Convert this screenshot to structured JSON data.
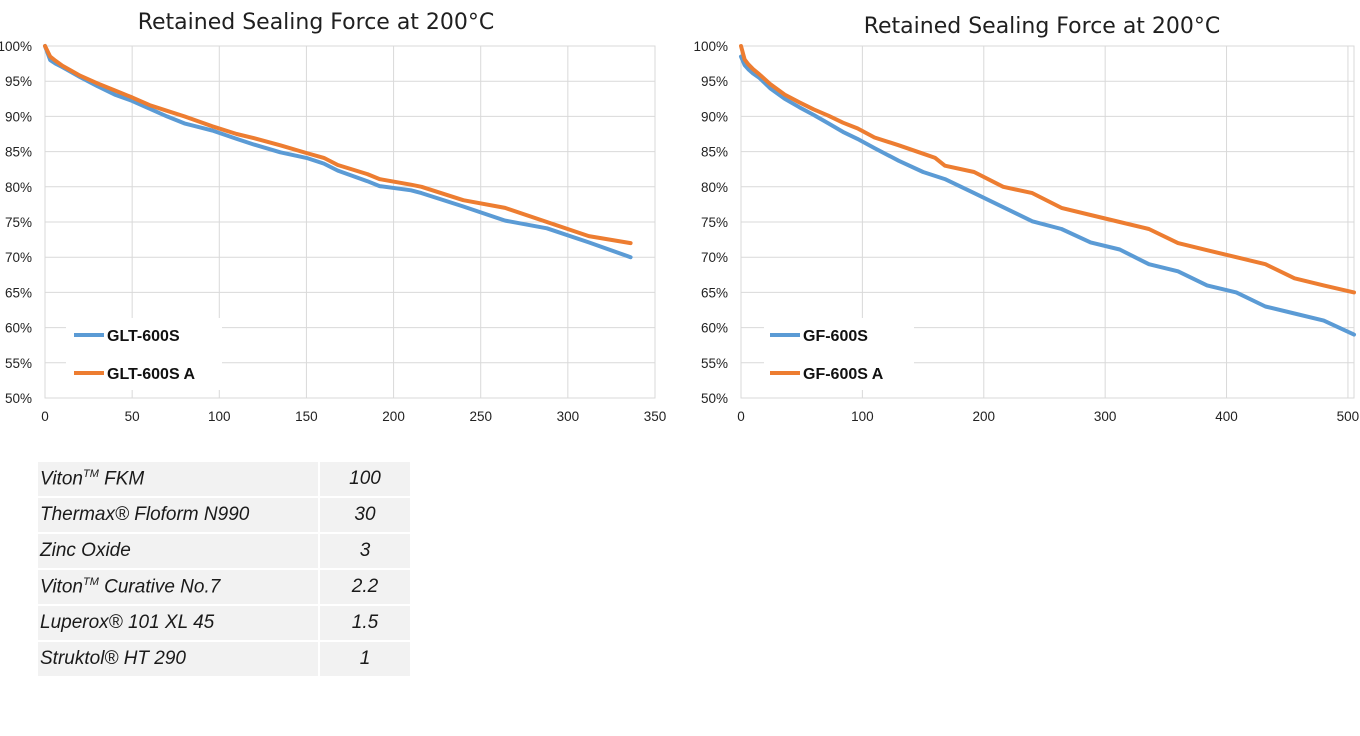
{
  "chart_data": [
    {
      "type": "line",
      "title": "Retained Sealing Force at 200°C",
      "xlim": [
        0,
        350
      ],
      "ylim": [
        50,
        100
      ],
      "x_ticks": [
        "0",
        "50",
        "100",
        "150",
        "200",
        "250",
        "300",
        "350"
      ],
      "y_ticks": [
        "50%",
        "55%",
        "60%",
        "65%",
        "70%",
        "75%",
        "80%",
        "85%",
        "90%",
        "95%",
        "100%"
      ],
      "grid": true,
      "legend_position": "bottom-left",
      "series": [
        {
          "name": "GLT-600S",
          "color": "#5b9bd5",
          "x": [
            0,
            3,
            6,
            10,
            15,
            20,
            30,
            40,
            50,
            60,
            70,
            80,
            96,
            110,
            120,
            135,
            150,
            160,
            168,
            185,
            192,
            210,
            216,
            240,
            264,
            288,
            312,
            336
          ],
          "y": [
            100,
            98,
            97.5,
            97,
            96.3,
            95.6,
            94.3,
            93.1,
            92.2,
            91.1,
            90,
            89,
            88,
            86.8,
            86,
            84.9,
            84.1,
            83.3,
            82.3,
            80.8,
            80.1,
            79.5,
            79.1,
            77.2,
            75.2,
            74.1,
            72.1,
            70
          ]
        },
        {
          "name": "GLT-600S A",
          "color": "#ed7d31",
          "x": [
            0,
            3,
            6,
            10,
            15,
            20,
            30,
            40,
            50,
            60,
            70,
            80,
            96,
            110,
            120,
            135,
            150,
            160,
            168,
            185,
            192,
            210,
            216,
            240,
            264,
            288,
            312,
            336
          ],
          "y": [
            100,
            98.5,
            97.9,
            97.2,
            96.5,
            95.8,
            94.7,
            93.7,
            92.7,
            91.6,
            90.8,
            90,
            88.6,
            87.5,
            86.9,
            85.9,
            84.8,
            84.1,
            83.1,
            81.8,
            81.1,
            80.3,
            80,
            78.1,
            77,
            75,
            73,
            72
          ]
        }
      ]
    },
    {
      "type": "line",
      "title": "Retained Sealing Force at 200°C",
      "xlim": [
        0,
        505
      ],
      "ylim": [
        50,
        100
      ],
      "x_ticks": [
        "0",
        "100",
        "200",
        "300",
        "400",
        "500"
      ],
      "y_ticks": [
        "50%",
        "55%",
        "60%",
        "65%",
        "70%",
        "75%",
        "80%",
        "85%",
        "90%",
        "95%",
        "100%"
      ],
      "grid": true,
      "legend_position": "bottom-left",
      "series": [
        {
          "name": "GF-600S",
          "color": "#5b9bd5",
          "x": [
            0,
            3,
            6,
            10,
            15,
            24,
            36,
            48,
            60,
            72,
            84,
            96,
            110,
            130,
            150,
            168,
            192,
            216,
            240,
            264,
            288,
            312,
            336,
            360,
            384,
            408,
            432,
            456,
            480,
            505
          ],
          "y": [
            98.5,
            97.3,
            96.7,
            96.1,
            95.5,
            94,
            92.5,
            91.3,
            90.2,
            89,
            87.8,
            86.8,
            85.5,
            83.7,
            82.1,
            81.1,
            79.1,
            77.1,
            75.1,
            74,
            72.1,
            71.1,
            69,
            68,
            66,
            65,
            63,
            62,
            61,
            59
          ]
        },
        {
          "name": "GF-600S A",
          "color": "#ed7d31",
          "x": [
            0,
            3,
            6,
            10,
            15,
            24,
            36,
            48,
            60,
            72,
            84,
            96,
            110,
            130,
            150,
            160,
            168,
            192,
            216,
            240,
            264,
            288,
            312,
            336,
            360,
            384,
            408,
            432,
            456,
            480,
            505
          ],
          "y": [
            100,
            98.1,
            97.4,
            96.7,
            96,
            94.6,
            93.1,
            92,
            91,
            90.1,
            89.1,
            88.3,
            87,
            85.9,
            84.7,
            84.1,
            83,
            82.1,
            80,
            79.1,
            77,
            76,
            75,
            74,
            72,
            71,
            70,
            69,
            67,
            66,
            65
          ]
        }
      ]
    }
  ],
  "recipe_table": [
    {
      "name": "Viton",
      "sup": "TM",
      "rest": " FKM",
      "amount": "100"
    },
    {
      "name": "Thermax® Floform N990",
      "sup": "",
      "rest": "",
      "amount": "30"
    },
    {
      "name": "Zinc Oxide",
      "sup": "",
      "rest": "",
      "amount": "3"
    },
    {
      "name": "Viton",
      "sup": "TM",
      "rest": " Curative No.7",
      "amount": "2.2"
    },
    {
      "name": "Luperox® 101 XL 45",
      "sup": "",
      "rest": "",
      "amount": "1.5"
    },
    {
      "name": "Struktol® HT 290",
      "sup": "",
      "rest": "",
      "amount": "1"
    }
  ]
}
